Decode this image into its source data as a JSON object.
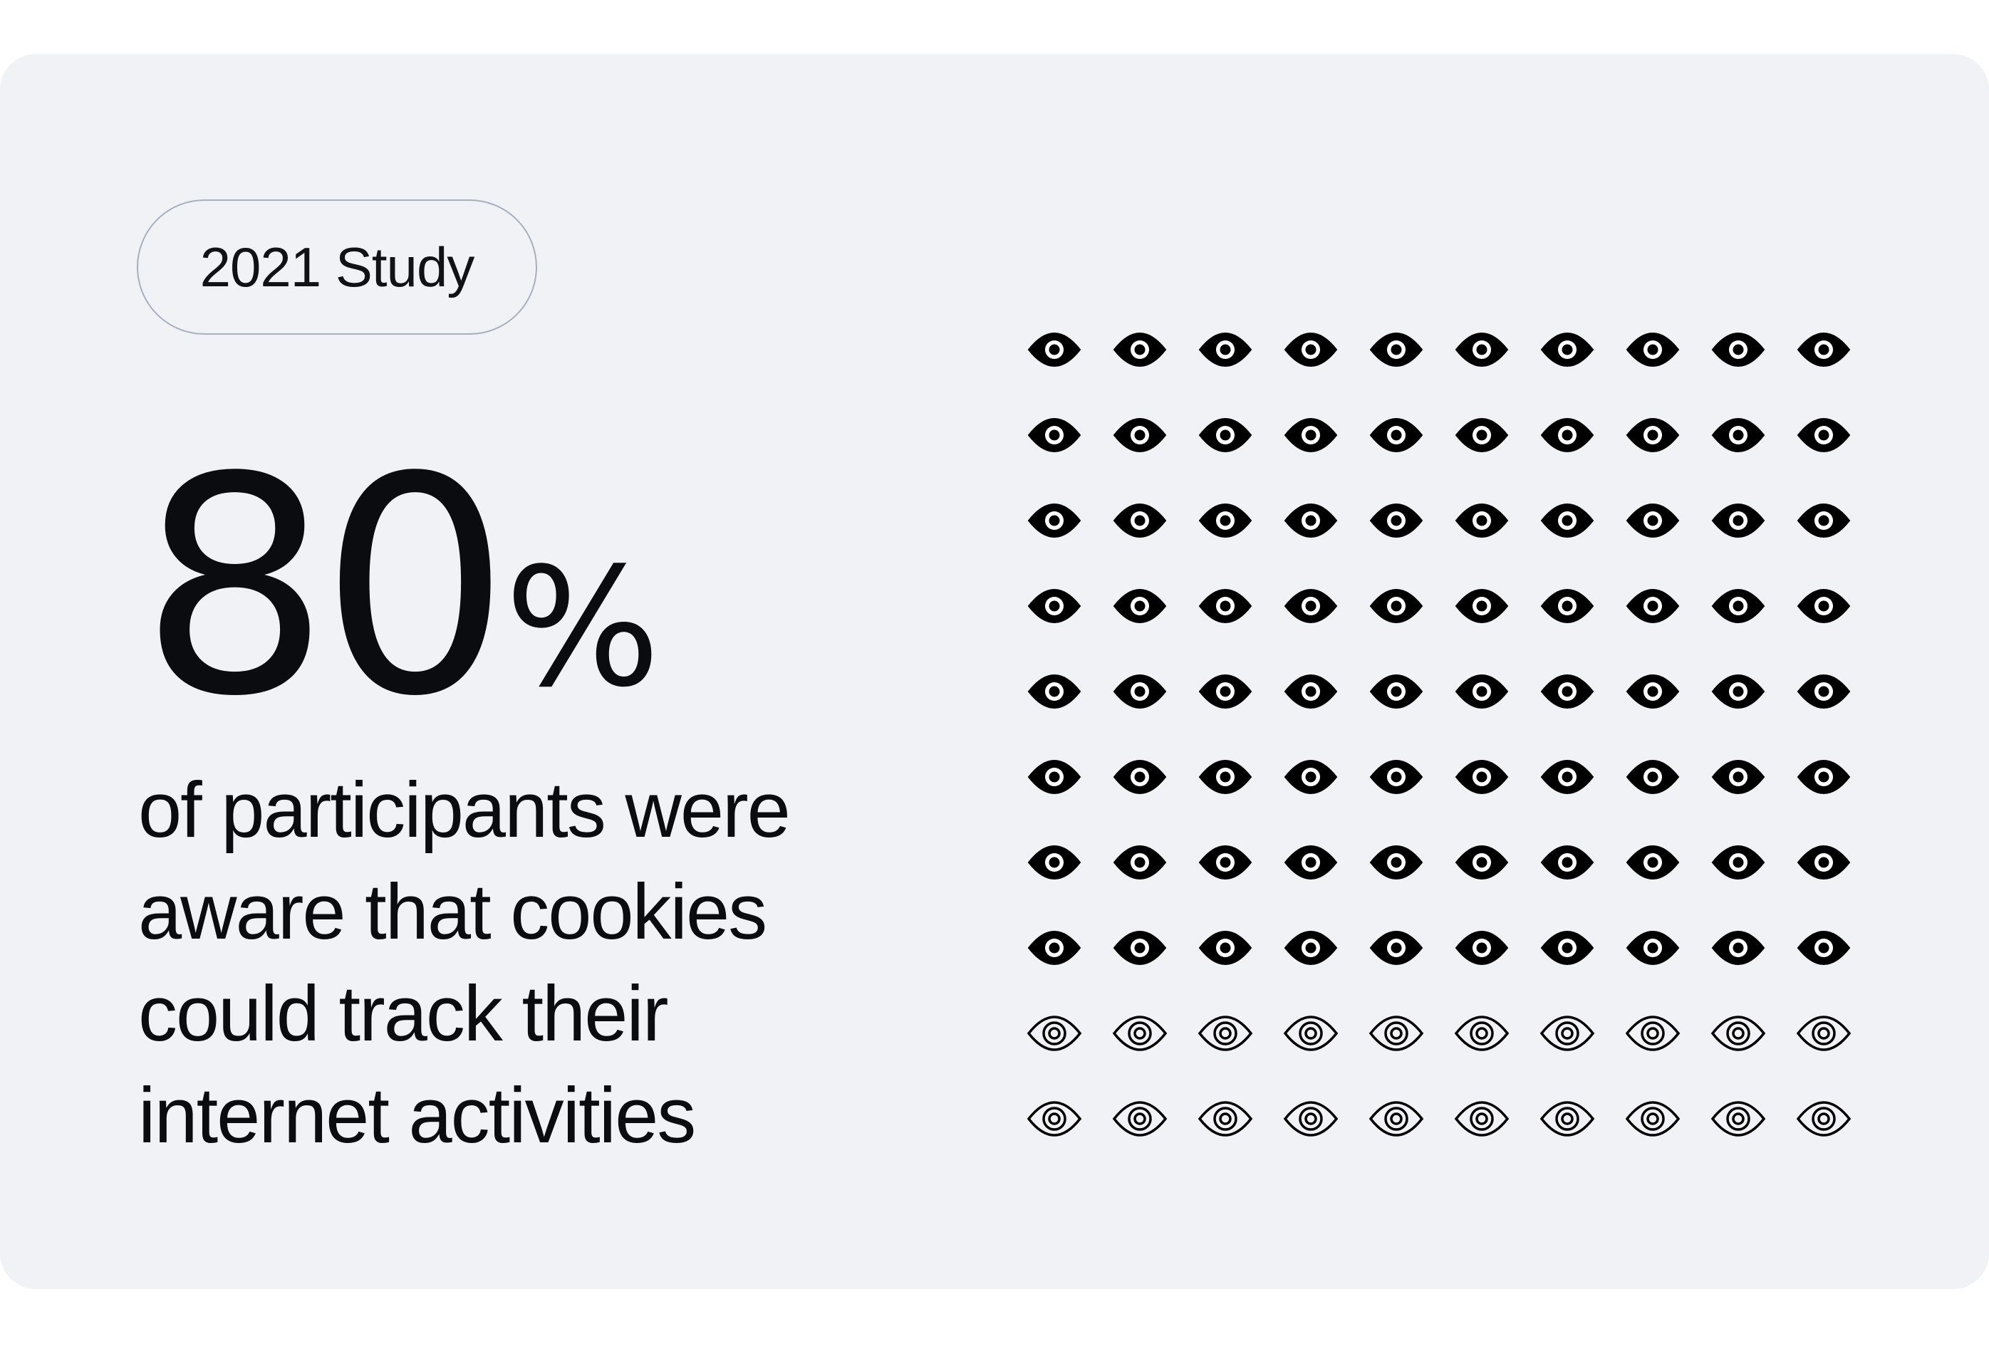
{
  "badge": {
    "label": "2021 Study"
  },
  "headline": {
    "value": "80",
    "unit": "%"
  },
  "description": {
    "lines": [
      "of participants were",
      "aware that cookies",
      "could track their",
      "internet activities"
    ]
  },
  "chart_data": {
    "type": "pictograph",
    "icon": "eye-icon",
    "rows": 10,
    "columns": 10,
    "total": 100,
    "filled": 80,
    "unfilled": 20,
    "percent": 80,
    "colors": {
      "filled": "#000000",
      "unfilled_stroke": "#000000",
      "background": "#f1f2f6"
    }
  }
}
